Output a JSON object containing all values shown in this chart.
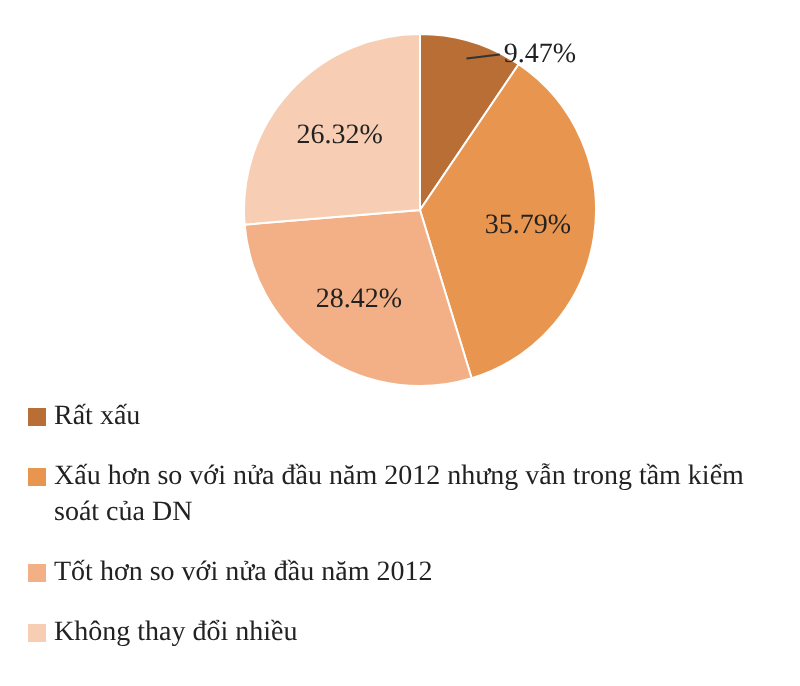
{
  "chart_data": {
    "type": "pie",
    "categories": [
      "Rất xấu",
      "Xấu hơn so với nửa đầu năm 2012 nhưng  vẫn trong tầm kiểm soát của DN",
      "Tốt hơn so với nửa đầu năm 2012",
      "Không  thay đổi nhiều"
    ],
    "values": [
      9.47,
      35.79,
      28.42,
      26.32
    ],
    "colors": [
      "#b86e35",
      "#e8954f",
      "#f3b086",
      "#f7cdb3"
    ],
    "value_labels": [
      "9.47%",
      "35.79%",
      "28.42%",
      "26.32%"
    ],
    "legend": "bottom"
  }
}
